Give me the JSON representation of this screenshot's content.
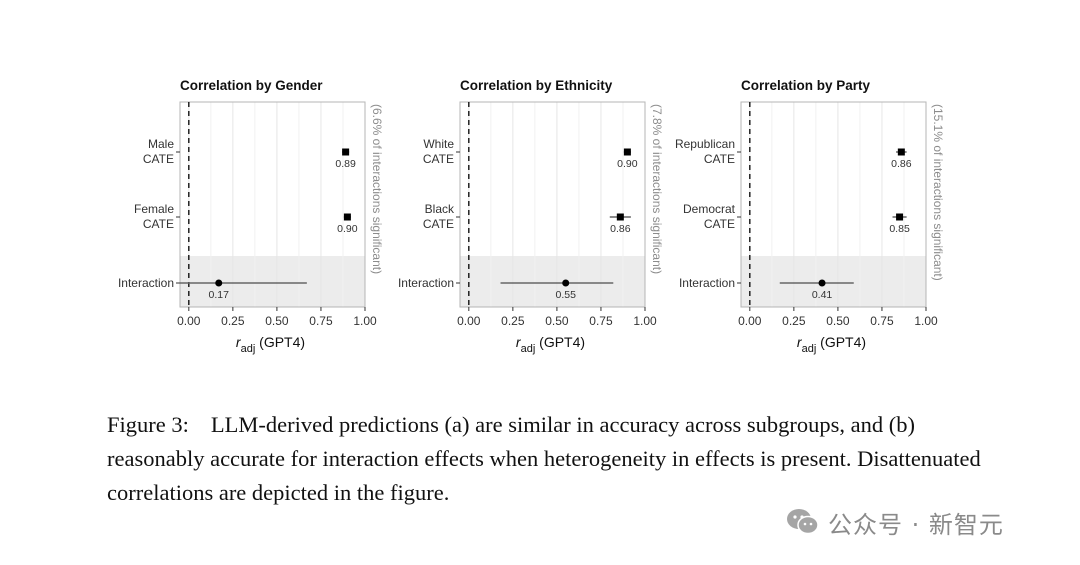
{
  "chart_data": [
    {
      "type": "scatter",
      "title": "Correlation by Gender",
      "xlabel": "r_adj (GPT4)",
      "xlabel_main": "r",
      "xlabel_sub": "adj",
      "xlabel_rest": " (GPT4)",
      "xlim": [
        -0.05,
        1.0
      ],
      "xticks": [
        "0.00",
        "0.25",
        "0.50",
        "0.75",
        "1.00"
      ],
      "xtick_values": [
        0,
        0.25,
        0.5,
        0.75,
        1.0
      ],
      "reference_line": 0,
      "side_label": "(6.6% of interactions significant)",
      "rows": [
        {
          "label_lines": [
            "Male",
            "CATE"
          ],
          "estimate": 0.89,
          "value_label": "0.89",
          "low": 0.87,
          "high": 0.91,
          "marker": "square"
        },
        {
          "label_lines": [
            "Female",
            "CATE"
          ],
          "estimate": 0.9,
          "value_label": "0.90",
          "low": 0.88,
          "high": 0.92,
          "marker": "square"
        },
        {
          "label_lines": [
            "Interaction"
          ],
          "estimate": 0.17,
          "value_label": "0.17",
          "low": -0.12,
          "high": 0.67,
          "marker": "circle",
          "shaded": true
        }
      ]
    },
    {
      "type": "scatter",
      "title": "Correlation by Ethnicity",
      "xlabel": "r_adj (GPT4)",
      "xlabel_main": "r",
      "xlabel_sub": "adj",
      "xlabel_rest": " (GPT4)",
      "xlim": [
        -0.05,
        1.0
      ],
      "xticks": [
        "0.00",
        "0.25",
        "0.50",
        "0.75",
        "1.00"
      ],
      "xtick_values": [
        0,
        0.25,
        0.5,
        0.75,
        1.0
      ],
      "reference_line": 0,
      "side_label": "(7.8% of interactions significant)",
      "rows": [
        {
          "label_lines": [
            "White",
            "CATE"
          ],
          "estimate": 0.9,
          "value_label": "0.90",
          "low": 0.88,
          "high": 0.92,
          "marker": "square"
        },
        {
          "label_lines": [
            "Black",
            "CATE"
          ],
          "estimate": 0.86,
          "value_label": "0.86",
          "low": 0.8,
          "high": 0.92,
          "marker": "square"
        },
        {
          "label_lines": [
            "Interaction"
          ],
          "estimate": 0.55,
          "value_label": "0.55",
          "low": 0.18,
          "high": 0.82,
          "marker": "circle",
          "shaded": true
        }
      ]
    },
    {
      "type": "scatter",
      "title": "Correlation by Party",
      "xlabel": "r_adj (GPT4)",
      "xlabel_main": "r",
      "xlabel_sub": "adj",
      "xlabel_rest": " (GPT4)",
      "xlim": [
        -0.05,
        1.0
      ],
      "xticks": [
        "0.00",
        "0.25",
        "0.50",
        "0.75",
        "1.00"
      ],
      "xtick_values": [
        0,
        0.25,
        0.5,
        0.75,
        1.0
      ],
      "reference_line": 0,
      "side_label": "(15.1% of interactions significant)",
      "rows": [
        {
          "label_lines": [
            "Republican",
            "CATE"
          ],
          "estimate": 0.86,
          "value_label": "0.86",
          "low": 0.83,
          "high": 0.89,
          "marker": "square"
        },
        {
          "label_lines": [
            "Democrat",
            "CATE"
          ],
          "estimate": 0.85,
          "value_label": "0.85",
          "low": 0.81,
          "high": 0.89,
          "marker": "square"
        },
        {
          "label_lines": [
            "Interaction"
          ],
          "estimate": 0.41,
          "value_label": "0.41",
          "low": 0.17,
          "high": 0.59,
          "marker": "circle",
          "shaded": true
        }
      ]
    }
  ],
  "caption": {
    "figure_label": "Figure 3:",
    "text": "LLM-derived predictions (a) are similar in accuracy across subgroups, and (b) reasonably accurate for interaction effects when heterogeneity in effects is present. Disattenuated correlations are depicted in the figure."
  },
  "watermark": {
    "icon": "wechat-icon",
    "text": "公众号 · 新智元"
  },
  "colors": {
    "panel_border": "#b5b5b5",
    "grid": "#e6e6e6",
    "shade": "#ececec",
    "marker": "#000000",
    "errorbar": "#666666",
    "side_label": "#8c8c8c"
  }
}
